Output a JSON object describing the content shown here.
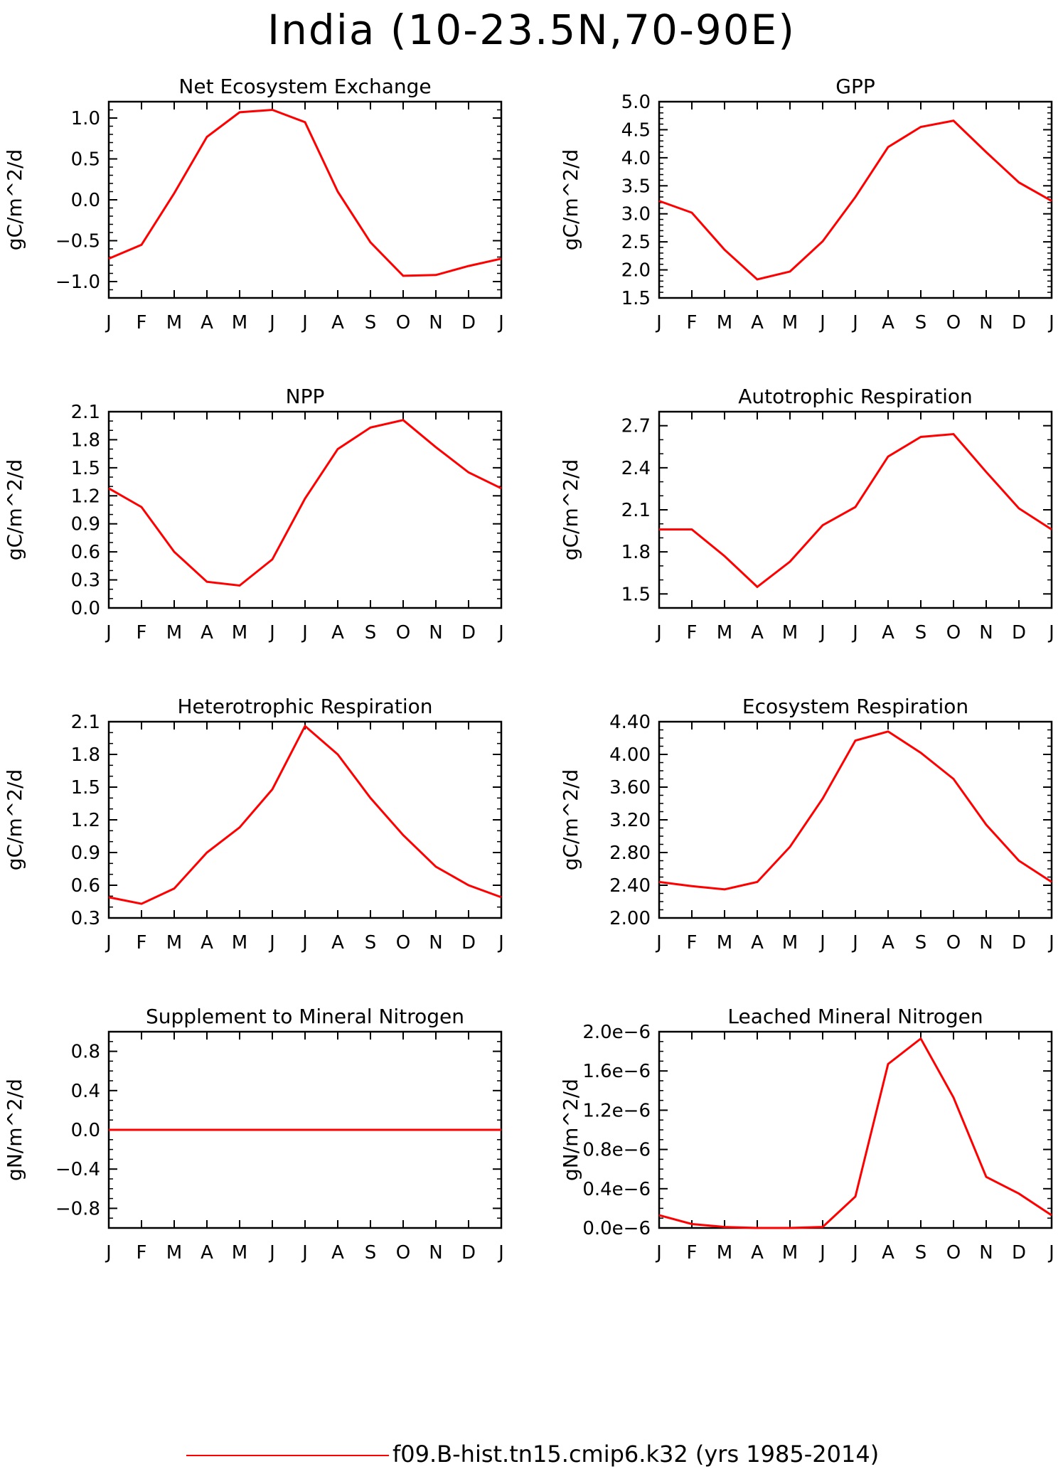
{
  "title": "India (10-23.5N,70-90E)",
  "legend": {
    "label": "f09.B-hist.tn15.cmip6.k32 (yrs 1985-2014)",
    "color": "#ff0000"
  },
  "month_labels": [
    "J",
    "F",
    "M",
    "A",
    "M",
    "J",
    "J",
    "A",
    "S",
    "O",
    "N",
    "D",
    "J"
  ],
  "chart_data": [
    {
      "type": "line",
      "title": "Net Ecosystem Exchange",
      "ylabel": "gC/m^2/d",
      "ylim": [
        -1.2,
        1.2
      ],
      "yticks": [
        -1.0,
        -0.5,
        0.0,
        0.5,
        1.0
      ],
      "ytick_labels": [
        "-1.0",
        "-0.5",
        "0.0",
        "0.5",
        "1.0"
      ],
      "yminor": 0.1,
      "series": [
        {
          "values": [
            -0.72,
            -0.55,
            0.08,
            0.77,
            1.07,
            1.1,
            0.95,
            0.1,
            -0.52,
            -0.93,
            -0.92,
            -0.81,
            -0.72
          ]
        }
      ]
    },
    {
      "type": "line",
      "title": "GPP",
      "ylabel": "gC/m^2/d",
      "ylim": [
        1.5,
        5.0
      ],
      "yticks": [
        1.5,
        2.0,
        2.5,
        3.0,
        3.5,
        4.0,
        4.5,
        5.0
      ],
      "ytick_labels": [
        "1.5",
        "2.0",
        "2.5",
        "3.0",
        "3.5",
        "4.0",
        "4.5",
        "5.0"
      ],
      "yminor": 0.1,
      "series": [
        {
          "values": [
            3.23,
            3.02,
            2.36,
            1.83,
            1.97,
            2.51,
            3.3,
            4.19,
            4.55,
            4.66,
            4.1,
            3.56,
            3.23
          ]
        }
      ]
    },
    {
      "type": "line",
      "title": "NPP",
      "ylabel": "gC/m^2/d",
      "ylim": [
        0.0,
        2.1
      ],
      "yticks": [
        0.0,
        0.3,
        0.6,
        0.9,
        1.2,
        1.5,
        1.8,
        2.1
      ],
      "ytick_labels": [
        "0.0",
        "0.3",
        "0.6",
        "0.9",
        "1.2",
        "1.5",
        "1.8",
        "2.1"
      ],
      "yminor": 0.1,
      "series": [
        {
          "values": [
            1.28,
            1.08,
            0.6,
            0.28,
            0.24,
            0.52,
            1.17,
            1.7,
            1.93,
            2.01,
            1.72,
            1.45,
            1.28
          ]
        }
      ]
    },
    {
      "type": "line",
      "title": "Autotrophic Respiration",
      "ylabel": "gC/m^2/d",
      "ylim": [
        1.4,
        2.8
      ],
      "yticks": [
        1.5,
        1.8,
        2.1,
        2.4,
        2.7
      ],
      "ytick_labels": [
        "1.5",
        "1.8",
        "2.1",
        "2.4",
        "2.7"
      ],
      "yminor": 0.1,
      "series": [
        {
          "values": [
            1.96,
            1.96,
            1.77,
            1.55,
            1.73,
            1.99,
            2.12,
            2.48,
            2.62,
            2.64,
            2.37,
            2.11,
            1.96
          ]
        }
      ]
    },
    {
      "type": "line",
      "title": "Heterotrophic Respiration",
      "ylabel": "gC/m^2/d",
      "ylim": [
        0.3,
        2.1
      ],
      "yticks": [
        0.3,
        0.6,
        0.9,
        1.2,
        1.5,
        1.8,
        2.1
      ],
      "ytick_labels": [
        "0.3",
        "0.6",
        "0.9",
        "1.2",
        "1.5",
        "1.8",
        "2.1"
      ],
      "yminor": 0.1,
      "series": [
        {
          "values": [
            0.49,
            0.43,
            0.57,
            0.9,
            1.13,
            1.48,
            2.06,
            1.8,
            1.4,
            1.06,
            0.77,
            0.6,
            0.49
          ]
        }
      ]
    },
    {
      "type": "line",
      "title": "Ecosystem Respiration",
      "ylabel": "gC/m^2/d",
      "ylim": [
        2.0,
        4.4
      ],
      "yticks": [
        2.0,
        2.4,
        2.8,
        3.2,
        3.6,
        4.0,
        4.4
      ],
      "ytick_labels": [
        "2.00",
        "2.40",
        "2.80",
        "3.20",
        "3.60",
        "4.00",
        "4.40"
      ],
      "yminor": 0.1,
      "series": [
        {
          "values": [
            2.44,
            2.39,
            2.35,
            2.44,
            2.87,
            3.46,
            4.17,
            4.28,
            4.02,
            3.7,
            3.14,
            2.7,
            2.44
          ]
        }
      ]
    },
    {
      "type": "line",
      "title": "Supplement to Mineral Nitrogen",
      "ylabel": "gN/m^2/d",
      "ylim": [
        -1.0,
        1.0
      ],
      "yticks": [
        -0.8,
        -0.4,
        0.0,
        0.4,
        0.8
      ],
      "ytick_labels": [
        "-0.8",
        "-0.4",
        "0.0",
        "0.4",
        "0.8"
      ],
      "yminor": 0.1,
      "series": [
        {
          "values": [
            0,
            0,
            0,
            0,
            0,
            0,
            0,
            0,
            0,
            0,
            0,
            0,
            0
          ]
        }
      ]
    },
    {
      "type": "line",
      "title": "Leached Mineral Nitrogen",
      "ylabel": "gN/m^2/d",
      "ylim": [
        0.0,
        2e-06
      ],
      "yticks": [
        0.0,
        4e-07,
        8e-07,
        1.2e-06,
        1.6e-06,
        2e-06
      ],
      "ytick_labels": [
        "0.0e-6",
        "0.4e-6",
        "0.8e-6",
        "1.2e-6",
        "1.6e-6",
        "2.0e-6"
      ],
      "yminor": 1e-07,
      "series": [
        {
          "values": [
            1.3e-07,
            4e-08,
            1e-08,
            0.0,
            0.0,
            1e-08,
            3.2e-07,
            1.67e-06,
            1.93e-06,
            1.33e-06,
            5.2e-07,
            3.5e-07,
            1.3e-07
          ]
        }
      ]
    }
  ]
}
